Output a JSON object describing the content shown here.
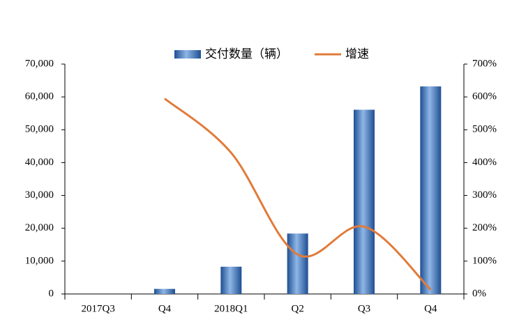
{
  "chart_data": {
    "type": "bar-line",
    "categories": [
      "2017Q3",
      "Q4",
      "2018Q1",
      "Q2",
      "Q3",
      "Q4"
    ],
    "series": [
      {
        "name": "交付数量（辆）",
        "type": "bar",
        "color": "#2f6db5",
        "values": [
          0,
          1550,
          8300,
          18400,
          56100,
          63200
        ]
      },
      {
        "name": "增速",
        "type": "line",
        "axis": "y2",
        "color": "#e07b39",
        "values": [
          null,
          595,
          430,
          120,
          205,
          13
        ]
      }
    ],
    "ylim": [
      0,
      70000
    ],
    "yticks": [
      0,
      {
        "value": 10000,
        "label": "10,000"
      },
      {
        "value": 20000,
        "label": "20,000"
      },
      {
        "value": 30000,
        "label": "30,000"
      },
      {
        "value": 40000,
        "label": "40,000"
      },
      {
        "value": 50000,
        "label": "50,000"
      },
      {
        "value": 60000,
        "label": "60,000"
      },
      {
        "value": 70000,
        "label": "70,000"
      }
    ],
    "y2lim": [
      0,
      700
    ],
    "y2ticks": [
      {
        "value": 0,
        "label": "0%"
      },
      {
        "value": 100,
        "label": "100%"
      },
      {
        "value": 200,
        "label": "200%"
      },
      {
        "value": 300,
        "label": "300%"
      },
      {
        "value": 400,
        "label": "400%"
      },
      {
        "value": 500,
        "label": "500%"
      },
      {
        "value": 600,
        "label": "600%"
      },
      {
        "value": 700,
        "label": "700%"
      }
    ],
    "legend": "top"
  }
}
